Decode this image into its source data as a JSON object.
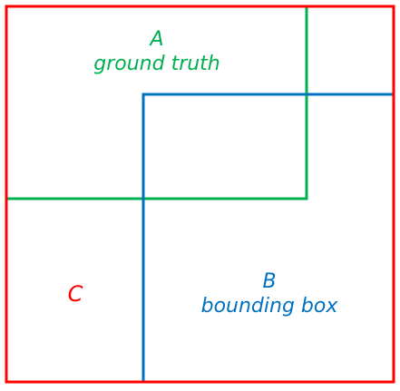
{
  "box_a": {
    "letter": "A",
    "name": "ground truth",
    "color": "#00b050"
  },
  "box_b": {
    "letter": "B",
    "name": "bounding box",
    "color": "#0070c0"
  },
  "box_c": {
    "letter": "C",
    "color": "#ff0000"
  }
}
